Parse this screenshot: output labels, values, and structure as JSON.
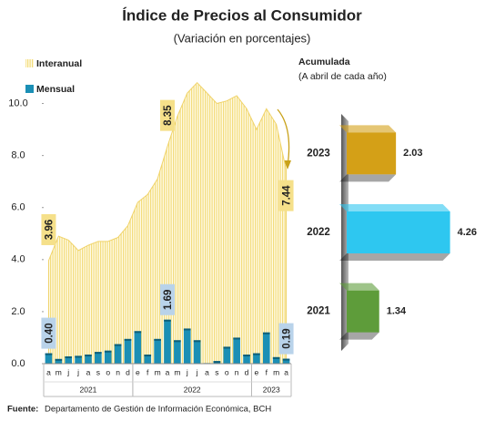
{
  "title": "Índice de Precios al Consumidor",
  "subtitle": "(Variación en porcentajes)",
  "source": {
    "label": "Fuente:",
    "text": "Departamento de Gestión de Información Económica, BCH"
  },
  "chart_data": [
    {
      "type": "bar_area",
      "categories": [
        "a",
        "m",
        "j",
        "j",
        "a",
        "s",
        "o",
        "n",
        "d",
        "e",
        "f",
        "m",
        "a",
        "m",
        "j",
        "j",
        "a",
        "s",
        "o",
        "n",
        "d",
        "e",
        "f",
        "m",
        "a"
      ],
      "x_groups": [
        {
          "label": "2021",
          "start": 0,
          "end": 8
        },
        {
          "label": "2022",
          "start": 9,
          "end": 20
        },
        {
          "label": "2023",
          "start": 21,
          "end": 24
        }
      ],
      "ylim": [
        0,
        11
      ],
      "yticks": [
        {
          "value": 0,
          "label": "0.0"
        },
        {
          "value": 2,
          "label": "2.0"
        },
        {
          "value": 4,
          "label": "4.0"
        },
        {
          "value": 6,
          "label": "6.0"
        },
        {
          "value": 8,
          "label": "8.0"
        },
        {
          "value": 10,
          "label": "10.0"
        }
      ],
      "series": [
        {
          "name": "Interanual",
          "kind": "area",
          "color": "#f5e08a",
          "values": [
            3.96,
            4.9,
            4.75,
            4.35,
            4.55,
            4.7,
            4.7,
            4.85,
            5.3,
            6.2,
            6.5,
            7.1,
            8.35,
            9.5,
            10.4,
            10.8,
            10.4,
            10.0,
            10.1,
            10.3,
            9.8,
            9.0,
            9.8,
            9.2,
            7.44
          ],
          "value_labels": [
            "3.96",
            null,
            null,
            null,
            null,
            null,
            null,
            null,
            null,
            null,
            null,
            null,
            "8.35",
            null,
            null,
            null,
            null,
            null,
            null,
            null,
            null,
            null,
            null,
            null,
            "7.44"
          ]
        },
        {
          "name": "Mensual",
          "kind": "bar",
          "color": "#1b8fb5",
          "values": [
            0.4,
            0.18,
            0.28,
            0.3,
            0.35,
            0.45,
            0.5,
            0.75,
            0.95,
            1.25,
            0.35,
            0.95,
            1.69,
            0.9,
            1.35,
            0.9,
            0.02,
            0.1,
            0.65,
            1.0,
            0.35,
            0.4,
            1.2,
            0.25,
            0.19
          ],
          "value_labels": [
            "0.40",
            null,
            null,
            null,
            null,
            null,
            null,
            null,
            null,
            null,
            null,
            null,
            "1.69",
            null,
            null,
            null,
            null,
            null,
            null,
            null,
            null,
            null,
            null,
            null,
            "0.19"
          ]
        }
      ]
    },
    {
      "type": "hbar3d",
      "title": "Acumulada",
      "subtitle": "(A abril de cada año)",
      "categories": [
        "2023",
        "2022",
        "2021"
      ],
      "values": [
        2.03,
        4.26,
        1.34
      ],
      "colors": [
        "#d4a017",
        "#2ec7f0",
        "#5e9c3a"
      ],
      "label_colors": [
        "#8a6a00",
        "#1f3a6b",
        "#4a7d2a"
      ],
      "xlim": [
        0,
        4.5
      ]
    }
  ]
}
